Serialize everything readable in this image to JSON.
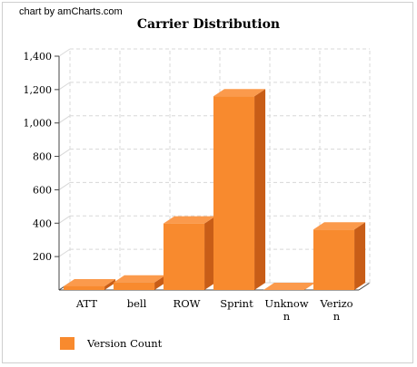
{
  "credit": "chart by amCharts.com",
  "chart_data": {
    "type": "bar",
    "title": "Carrier Distribution",
    "categories": [
      "ATT",
      "bell",
      "ROW",
      "Sprint",
      "Unknown",
      "Verizon"
    ],
    "series": [
      {
        "name": "Version Count",
        "values": [
          22,
          45,
          398,
          1160,
          0,
          362
        ],
        "color": "#f88a2e"
      }
    ],
    "ylim": [
      0,
      1400
    ],
    "yticks": [
      200,
      400,
      600,
      800,
      1000,
      1200,
      1400
    ],
    "ytick_labels": [
      "200",
      "400",
      "600",
      "800",
      "1,000",
      "1,200",
      "1,400"
    ],
    "grid": true,
    "legend_position": "bottom-left"
  },
  "legend": {
    "label": "Version Count"
  },
  "colors": {
    "bar_front": "#f88a2e",
    "bar_top": "#fb9a4c",
    "bar_side": "#c85d17",
    "grid": "#d8d8d8",
    "axis": "#444444"
  }
}
